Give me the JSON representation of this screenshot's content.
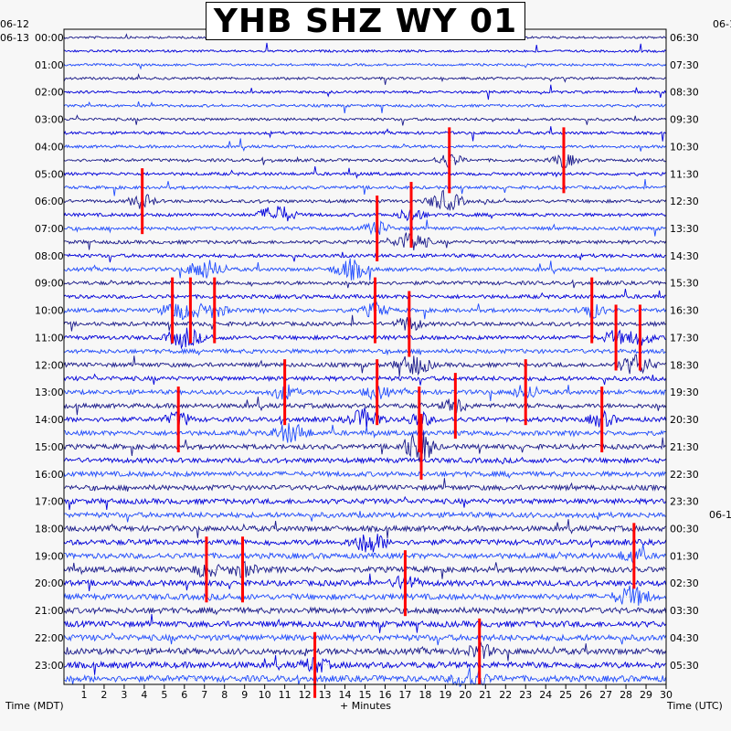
{
  "title": "YHB SHZ WY 01",
  "left_dates": {
    "prev": "06-12",
    "current": "06-13"
  },
  "right_dates": {
    "first": "06-1",
    "second": "06-1"
  },
  "chart_data": {
    "type": "helicorder",
    "station": "YHB",
    "channel": "SHZ",
    "network": "WY",
    "location": "01",
    "xlabel": "+ Minutes",
    "left_axis_label": "Time (MDT)",
    "right_axis_label": "Time (UTC)",
    "x_ticks": [
      "1",
      "2",
      "3",
      "4",
      "5",
      "6",
      "7",
      "8",
      "9",
      "10",
      "11",
      "12",
      "13",
      "14",
      "15",
      "16",
      "17",
      "18",
      "19",
      "20",
      "21",
      "22",
      "23",
      "24",
      "25",
      "26",
      "27",
      "28",
      "29",
      "30"
    ],
    "xlim": [
      0,
      30
    ],
    "rows_per_hour": 2,
    "hour_labels_left": [
      "00:00",
      "01:00",
      "02:00",
      "03:00",
      "04:00",
      "05:00",
      "06:00",
      "07:00",
      "08:00",
      "09:00",
      "10:00",
      "11:00",
      "12:00",
      "13:00",
      "14:00",
      "15:00",
      "16:00",
      "17:00",
      "18:00",
      "19:00",
      "20:00",
      "21:00",
      "22:00",
      "23:00"
    ],
    "hour_labels_right": [
      "06:30",
      "07:30",
      "08:30",
      "09:30",
      "10:30",
      "11:30",
      "12:30",
      "13:30",
      "14:30",
      "15:30",
      "16:30",
      "17:30",
      "18:30",
      "19:30",
      "20:30",
      "21:30",
      "22:30",
      "23:30",
      "00:30",
      "01:30",
      "02:30",
      "03:30",
      "04:30",
      "05:30"
    ],
    "trace_colors": [
      "#1a1a8c",
      "#0000dd",
      "#1f4bff"
    ],
    "event_color": "#ff0000",
    "red_events": [
      {
        "row": 12,
        "minute": 3.9
      },
      {
        "row": 20,
        "minute": 5.4
      },
      {
        "row": 20,
        "minute": 6.3
      },
      {
        "row": 20,
        "minute": 7.5
      },
      {
        "row": 28,
        "minute": 5.7
      },
      {
        "row": 26,
        "minute": 11.0
      },
      {
        "row": 14,
        "minute": 15.6
      },
      {
        "row": 13,
        "minute": 17.3
      },
      {
        "row": 20,
        "minute": 15.5
      },
      {
        "row": 21,
        "minute": 17.2
      },
      {
        "row": 26,
        "minute": 15.6
      },
      {
        "row": 28,
        "minute": 17.7
      },
      {
        "row": 30,
        "minute": 17.8
      },
      {
        "row": 9,
        "minute": 19.2
      },
      {
        "row": 9,
        "minute": 24.9
      },
      {
        "row": 27,
        "minute": 19.5
      },
      {
        "row": 26,
        "minute": 23.0
      },
      {
        "row": 20,
        "minute": 26.3
      },
      {
        "row": 22,
        "minute": 27.5
      },
      {
        "row": 22,
        "minute": 28.7
      },
      {
        "row": 28,
        "minute": 26.8
      },
      {
        "row": 39,
        "minute": 7.1
      },
      {
        "row": 39,
        "minute": 8.9
      },
      {
        "row": 40,
        "minute": 17.0
      },
      {
        "row": 38,
        "minute": 28.4
      },
      {
        "row": 45,
        "minute": 20.7
      },
      {
        "row": 46,
        "minute": 12.5
      }
    ],
    "bursts": [
      {
        "row": 13,
        "minute": 10.6
      },
      {
        "row": 17,
        "minute": 7.0
      },
      {
        "row": 17,
        "minute": 14.3
      },
      {
        "row": 15,
        "minute": 17.3
      },
      {
        "row": 12,
        "minute": 19.0
      },
      {
        "row": 22,
        "minute": 6.0
      },
      {
        "row": 24,
        "minute": 17.4
      },
      {
        "row": 30,
        "minute": 17.6
      },
      {
        "row": 28,
        "minute": 15.0
      },
      {
        "row": 29,
        "minute": 11.3
      },
      {
        "row": 37,
        "minute": 15.2
      },
      {
        "row": 41,
        "minute": 28.3
      },
      {
        "row": 24,
        "minute": 28.5
      },
      {
        "row": 47,
        "minute": 20.2
      }
    ]
  }
}
